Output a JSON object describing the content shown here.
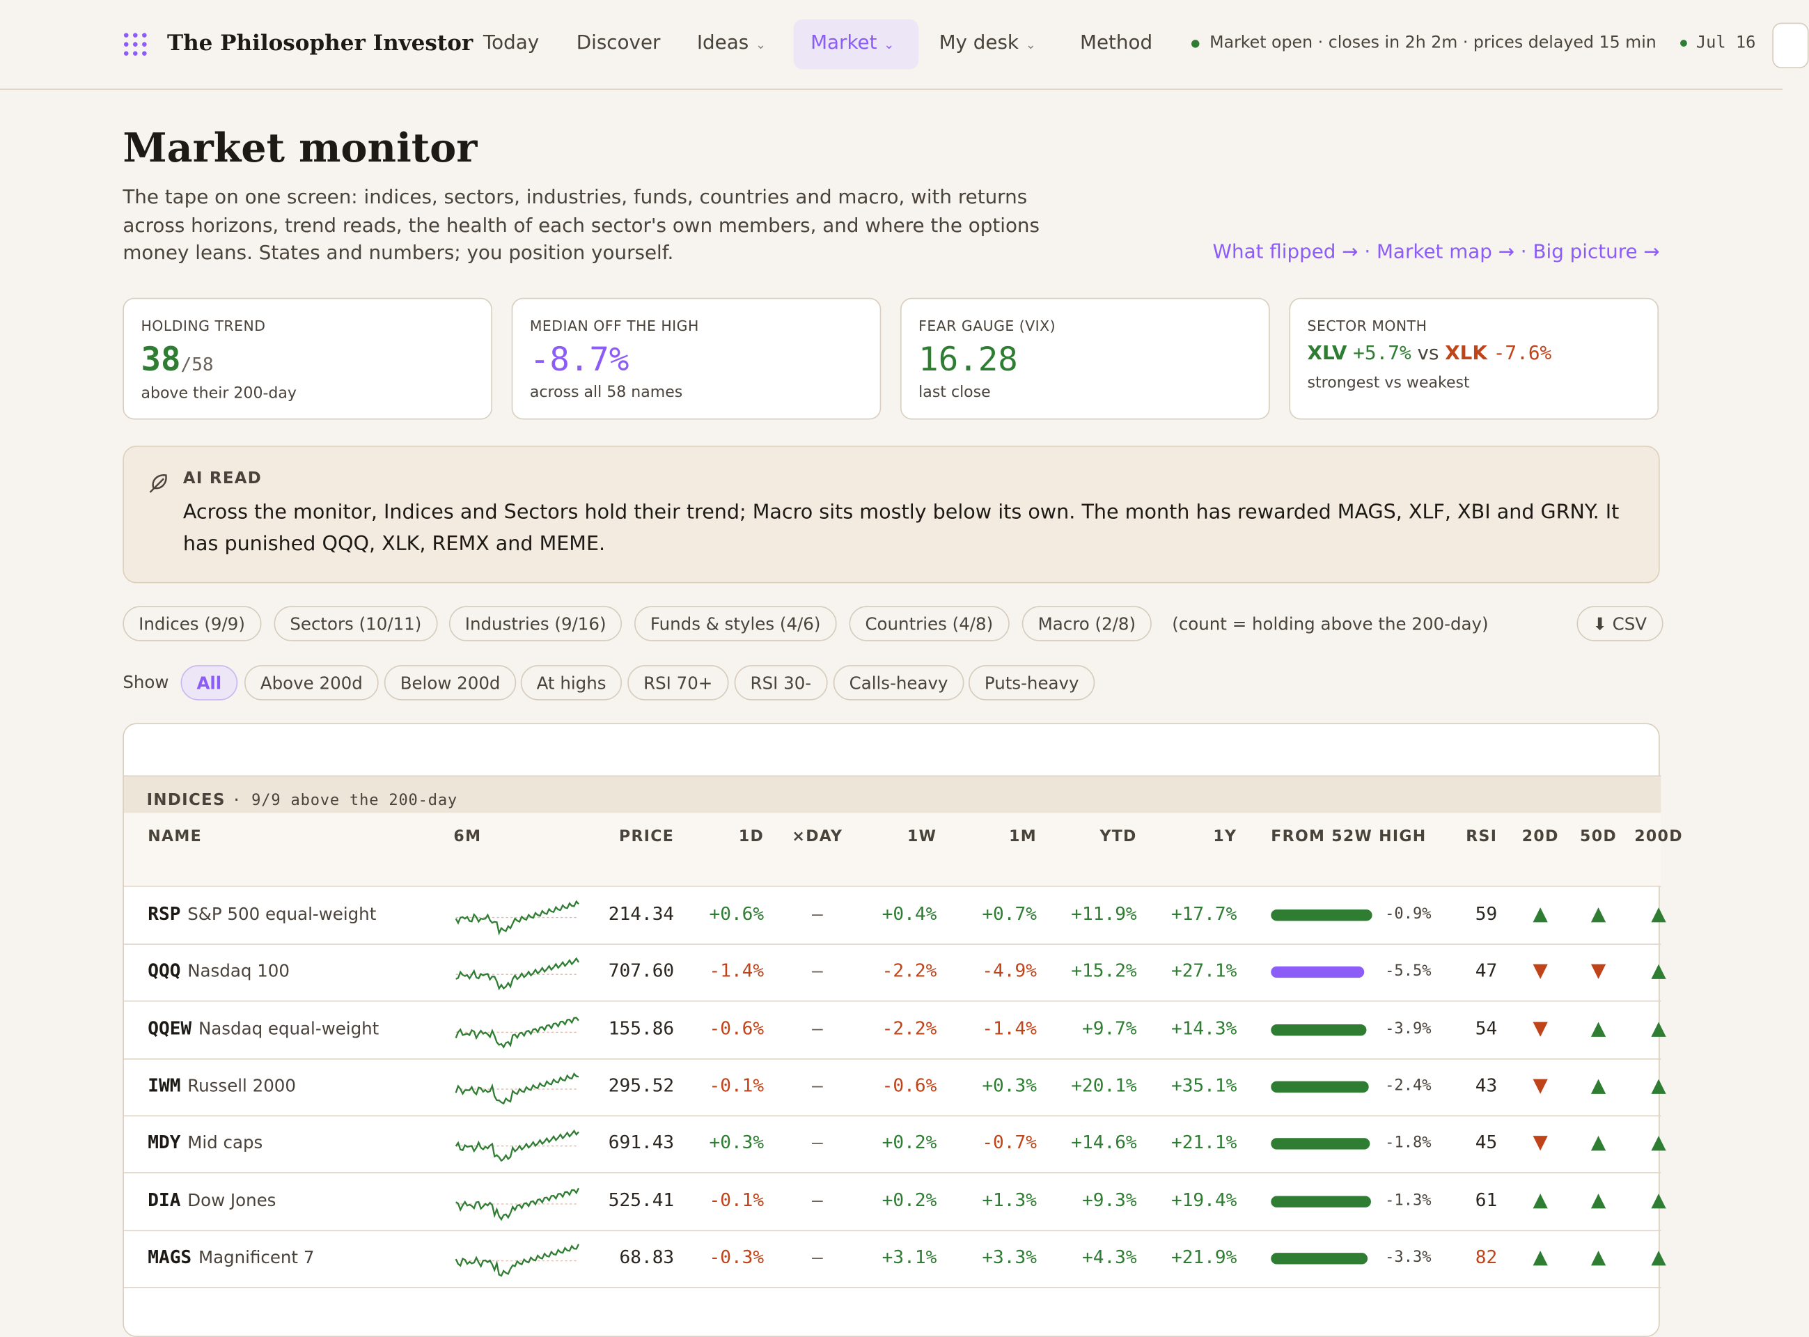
{
  "nav": {
    "brand": "The Philosopher Investor",
    "items": [
      "Today",
      "Discover",
      "Ideas",
      "Market",
      "My desk",
      "Method"
    ],
    "status": "Market open · closes in 2h 2m · prices delayed 15 min",
    "date": "Jul 16"
  },
  "header": {
    "title": "Market monitor",
    "description": "The tape on one screen: indices, sectors, industries, funds, countries and macro, with returns across horizons, trend reads, the health of each sector's own members, and where the options money leans. States and numbers; you position yourself.",
    "links": [
      "What flipped →",
      "Market map →",
      "Big picture →"
    ]
  },
  "cards": [
    {
      "label": "HOLDING TREND",
      "value": "38",
      "suffix": "/58",
      "note": "above their 200-day"
    },
    {
      "label": "MEDIAN OFF THE HIGH",
      "value": "-8.7%",
      "note": "across all 58 names"
    },
    {
      "label": "FEAR GAUGE (VIX)",
      "value": "16.28",
      "note": "last close"
    },
    {
      "label": "SECTOR MONTH",
      "strong": "XLV",
      "strong_value": "+5.7%",
      "vs": "vs",
      "weak": "XLK",
      "weak_value": "-7.6%",
      "note": "strongest vs weakest"
    }
  ],
  "ai_read": {
    "label": "AI READ",
    "text": "Across the monitor, Indices and Sectors hold their trend; Macro sits mostly below its own. The month has rewarded MAGS, XLF, XBI and GRNY. It has punished QQQ, XLK, REMX and MEME."
  },
  "groups": {
    "tabs": [
      "Indices (9/9)",
      "Sectors (10/11)",
      "Industries (9/16)",
      "Funds & styles (4/6)",
      "Countries (4/8)",
      "Macro (2/8)"
    ],
    "note": "(count = holding above the 200-day)",
    "csv": "⬇ CSV"
  },
  "filters": {
    "label": "Show",
    "items": [
      "All",
      "Above 200d",
      "Below 200d",
      "At highs",
      "RSI 70+",
      "RSI 30-",
      "Calls-heavy",
      "Puts-heavy"
    ]
  },
  "table": {
    "section": "INDICES",
    "section_note": "· 9/9 above the 200-day",
    "columns": [
      "NAME",
      "6M",
      "PRICE",
      "1D",
      "×DAY",
      "1W",
      "1M",
      "YTD",
      "1Y",
      "FROM 52W HIGH",
      "RSI",
      "20D",
      "50D",
      "200D"
    ],
    "rows": [
      {
        "ticker": "RSP",
        "name": "S&P 500 equal-weight",
        "price": "214.34",
        "d1": "+0.6%",
        "xday": "—",
        "w1": "+0.4%",
        "m1": "+0.7%",
        "ytd": "+11.9%",
        "y1": "+17.7%",
        "from_high": -0.9,
        "from_high_label": "-0.9%",
        "bar_color": "#2e7d32",
        "rsi": 59,
        "trend": [
          "▲",
          "▲",
          "▲"
        ]
      },
      {
        "ticker": "QQQ",
        "name": "Nasdaq 100",
        "price": "707.60",
        "d1": "-1.4%",
        "xday": "—",
        "w1": "-2.2%",
        "m1": "-4.9%",
        "ytd": "+15.2%",
        "y1": "+27.1%",
        "from_high": -5.5,
        "from_high_label": "-5.5%",
        "bar_color": "#8b5cf6",
        "rsi": 47,
        "trend": [
          "▼",
          "▼",
          "▲"
        ]
      },
      {
        "ticker": "QQEW",
        "name": "Nasdaq equal-weight",
        "price": "155.86",
        "d1": "-0.6%",
        "xday": "—",
        "w1": "-2.2%",
        "m1": "-1.4%",
        "ytd": "+9.7%",
        "y1": "+14.3%",
        "from_high": -3.9,
        "from_high_label": "-3.9%",
        "bar_color": "#2e7d32",
        "rsi": 54,
        "trend": [
          "▼",
          "▲",
          "▲"
        ]
      },
      {
        "ticker": "IWM",
        "name": "Russell 2000",
        "price": "295.52",
        "d1": "-0.1%",
        "xday": "—",
        "w1": "-0.6%",
        "m1": "+0.3%",
        "ytd": "+20.1%",
        "y1": "+35.1%",
        "from_high": -2.4,
        "from_high_label": "-2.4%",
        "bar_color": "#2e7d32",
        "rsi": 43,
        "trend": [
          "▼",
          "▲",
          "▲"
        ]
      },
      {
        "ticker": "MDY",
        "name": "Mid caps",
        "price": "691.43",
        "d1": "+0.3%",
        "xday": "—",
        "w1": "+0.2%",
        "m1": "-0.7%",
        "ytd": "+14.6%",
        "y1": "+21.1%",
        "from_high": -1.8,
        "from_high_label": "-1.8%",
        "bar_color": "#2e7d32",
        "rsi": 45,
        "trend": [
          "▼",
          "▲",
          "▲"
        ]
      },
      {
        "ticker": "DIA",
        "name": "Dow Jones",
        "price": "525.41",
        "d1": "-0.1%",
        "xday": "—",
        "w1": "+0.2%",
        "m1": "+1.3%",
        "ytd": "+9.3%",
        "y1": "+19.4%",
        "from_high": -1.3,
        "from_high_label": "-1.3%",
        "bar_color": "#2e7d32",
        "rsi": 61,
        "trend": [
          "▲",
          "▲",
          "▲"
        ]
      },
      {
        "ticker": "MAGS",
        "name": "Magnificent 7",
        "price": "68.83",
        "d1": "-0.3%",
        "xday": "—",
        "w1": "+3.1%",
        "m1": "+3.3%",
        "ytd": "+4.3%",
        "y1": "+21.9%",
        "from_high": -3.3,
        "from_high_label": "-3.3%",
        "bar_color": "#2e7d32",
        "rsi": 82,
        "trend": [
          "▲",
          "▲",
          "▲"
        ]
      }
    ]
  }
}
